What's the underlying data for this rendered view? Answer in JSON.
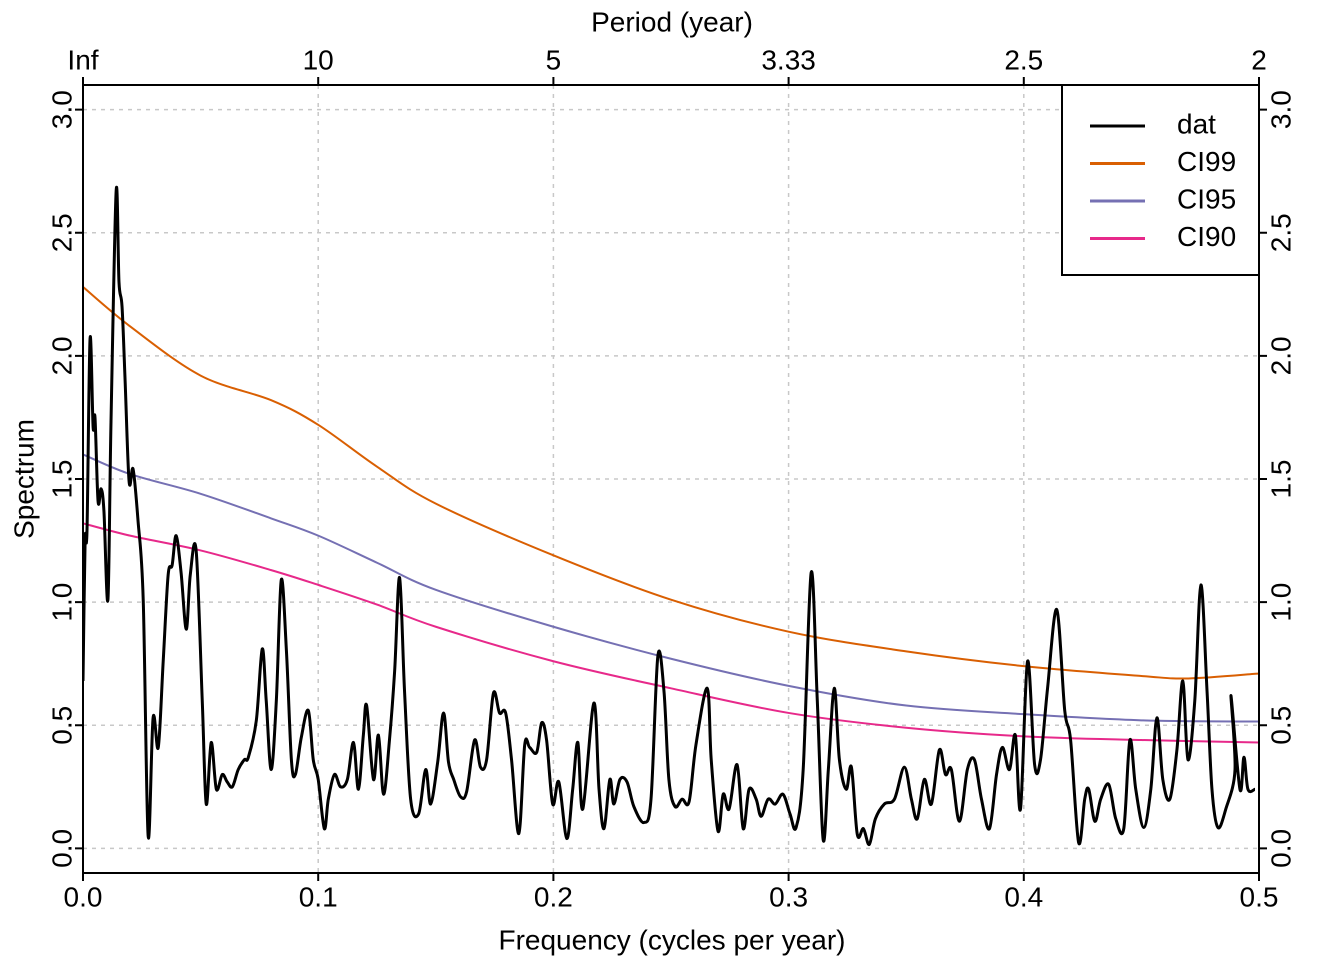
{
  "chart_data": {
    "type": "line",
    "xlabel": "Frequency (cycles per year)",
    "x2label": "Period (year)",
    "ylabel": "Spectrum",
    "xlim": [
      0,
      0.5
    ],
    "xticks": [
      {
        "value": 0,
        "label": "0.0"
      },
      0.1,
      0.2,
      0.3,
      0.4,
      0.5
    ],
    "x2ticks": [
      {
        "value": 0,
        "label": "Inf"
      },
      {
        "value": 0.1,
        "label": "10"
      },
      {
        "value": 0.2,
        "label": "5"
      },
      {
        "value": 0.3,
        "label": "3.33"
      },
      {
        "value": 0.4,
        "label": "2.5"
      },
      {
        "value": 0.5,
        "label": "2"
      }
    ],
    "ylim": [
      -0.1,
      3.1
    ],
    "yticks": [
      {
        "value": 0,
        "label": "0.0"
      },
      0.5,
      {
        "value": 1,
        "label": "1.0"
      },
      1.5,
      {
        "value": 2,
        "label": "2.0"
      },
      2.5,
      {
        "value": 3,
        "label": "3.0"
      }
    ],
    "y2lim": [
      -0.1,
      3.1
    ],
    "y2ticks": [
      {
        "value": 0,
        "label": "0.0"
      },
      0.5,
      {
        "value": 1,
        "label": "1.0"
      },
      1.5,
      {
        "value": 2,
        "label": "2.0"
      },
      2.5,
      {
        "value": 3,
        "label": "3.0"
      }
    ],
    "grid": true,
    "legend": "top-right",
    "series": [
      {
        "name": "dat",
        "color": "#000000",
        "x": [
          0,
          0.0009,
          0.0017,
          0.003,
          0.0043,
          0.0051,
          0.0064,
          0.0077,
          0.0089,
          0.0106,
          0.0119,
          0.0141,
          0.0153,
          0.0166,
          0.0179,
          0.0196,
          0.0213,
          0.0234,
          0.0256,
          0.0277,
          0.0298,
          0.032,
          0.0341,
          0.0362,
          0.0379,
          0.0396,
          0.0417,
          0.0439,
          0.0456,
          0.0481,
          0.0507,
          0.0524,
          0.0545,
          0.0567,
          0.0592,
          0.0613,
          0.0635,
          0.066,
          0.0686,
          0.0703,
          0.0737,
          0.0762,
          0.0779,
          0.08,
          0.0822,
          0.0843,
          0.0865,
          0.0886,
          0.0903,
          0.0928,
          0.0958,
          0.0979,
          0.1,
          0.1026,
          0.1043,
          0.1069,
          0.1095,
          0.1124,
          0.115,
          0.1171,
          0.1192,
          0.1206,
          0.1235,
          0.1256,
          0.1278,
          0.1303,
          0.1325,
          0.1346,
          0.1367,
          0.1393,
          0.1427,
          0.1457,
          0.1478,
          0.1508,
          0.1533,
          0.1554,
          0.1576,
          0.1605,
          0.1631,
          0.1665,
          0.169,
          0.1716,
          0.1745,
          0.1771,
          0.1797,
          0.1822,
          0.1853,
          0.1878,
          0.1899,
          0.1929,
          0.195,
          0.1971,
          0.1997,
          0.2023,
          0.2057,
          0.2082,
          0.2104,
          0.2125,
          0.2172,
          0.2194,
          0.2215,
          0.224,
          0.2257,
          0.2283,
          0.2313,
          0.2342,
          0.2385,
          0.2415,
          0.2444,
          0.247,
          0.2491,
          0.2517,
          0.2547,
          0.2577,
          0.2606,
          0.2654,
          0.2671,
          0.27,
          0.2722,
          0.2747,
          0.2781,
          0.2807,
          0.2832,
          0.2862,
          0.2883,
          0.2913,
          0.2943,
          0.2976,
          0.3006,
          0.3032,
          0.3062,
          0.3096,
          0.3122,
          0.3147,
          0.3169,
          0.3194,
          0.3216,
          0.3245,
          0.3267,
          0.3292,
          0.3318,
          0.3343,
          0.3369,
          0.3407,
          0.345,
          0.3492,
          0.3522,
          0.3547,
          0.3577,
          0.3607,
          0.3641,
          0.3667,
          0.3692,
          0.3726,
          0.376,
          0.379,
          0.382,
          0.3854,
          0.3884,
          0.3909,
          0.3939,
          0.3964,
          0.3986,
          0.4016,
          0.4046,
          0.4071,
          0.4101,
          0.414,
          0.4174,
          0.4199,
          0.4233,
          0.4259,
          0.4276,
          0.4302,
          0.4327,
          0.4361,
          0.4391,
          0.4425,
          0.4451,
          0.4476,
          0.451,
          0.454,
          0.4566,
          0.4591,
          0.4621,
          0.4651,
          0.4676,
          0.4698,
          0.4727,
          0.4753,
          0.4779,
          0.48,
          0.4825,
          0.4859,
          0.4898,
          0.4881,
          0.4919,
          0.4936,
          0.4953,
          0.4983
        ],
        "values": [
          0.68,
          1.25,
          1.29,
          2.07,
          1.71,
          1.75,
          1.41,
          1.46,
          1.37,
          1.01,
          1.73,
          2.67,
          2.3,
          2.2,
          1.9,
          1.49,
          1.54,
          1.33,
          1.01,
          0.05,
          0.53,
          0.41,
          0.76,
          1.11,
          1.15,
          1.27,
          1.12,
          0.89,
          1.11,
          1.21,
          0.6,
          0.18,
          0.43,
          0.24,
          0.3,
          0.27,
          0.25,
          0.32,
          0.36,
          0.37,
          0.52,
          0.81,
          0.6,
          0.32,
          0.6,
          1.09,
          0.8,
          0.36,
          0.3,
          0.45,
          0.56,
          0.36,
          0.28,
          0.08,
          0.2,
          0.3,
          0.25,
          0.28,
          0.43,
          0.24,
          0.46,
          0.58,
          0.28,
          0.46,
          0.22,
          0.44,
          0.72,
          1.1,
          0.64,
          0.2,
          0.14,
          0.32,
          0.18,
          0.35,
          0.55,
          0.35,
          0.28,
          0.21,
          0.23,
          0.44,
          0.33,
          0.36,
          0.63,
          0.55,
          0.55,
          0.36,
          0.06,
          0.42,
          0.41,
          0.39,
          0.51,
          0.44,
          0.18,
          0.27,
          0.04,
          0.24,
          0.43,
          0.16,
          0.59,
          0.24,
          0.08,
          0.28,
          0.18,
          0.28,
          0.27,
          0.17,
          0.105,
          0.2,
          0.78,
          0.64,
          0.28,
          0.17,
          0.2,
          0.19,
          0.42,
          0.65,
          0.36,
          0.07,
          0.22,
          0.16,
          0.34,
          0.08,
          0.24,
          0.2,
          0.13,
          0.2,
          0.18,
          0.22,
          0.14,
          0.085,
          0.32,
          1.12,
          0.6,
          0.035,
          0.32,
          0.65,
          0.36,
          0.24,
          0.33,
          0.057,
          0.08,
          0.016,
          0.12,
          0.18,
          0.2,
          0.33,
          0.2,
          0.12,
          0.28,
          0.18,
          0.4,
          0.3,
          0.32,
          0.11,
          0.32,
          0.36,
          0.2,
          0.08,
          0.3,
          0.41,
          0.32,
          0.46,
          0.16,
          0.76,
          0.34,
          0.36,
          0.65,
          0.97,
          0.56,
          0.44,
          0.024,
          0.2,
          0.24,
          0.11,
          0.2,
          0.26,
          0.12,
          0.08,
          0.44,
          0.24,
          0.085,
          0.24,
          0.53,
          0.28,
          0.2,
          0.4,
          0.68,
          0.36,
          0.6,
          1.07,
          0.64,
          0.24,
          0.085,
          0.16,
          0.32,
          0.62,
          0.24,
          0.37,
          0.24,
          0.24
        ]
      },
      {
        "name": "CI99",
        "color": "#d95f02",
        "x": [
          0,
          0.02,
          0.05,
          0.08,
          0.1,
          0.125,
          0.15,
          0.2,
          0.25,
          0.3,
          0.35,
          0.4,
          0.45,
          0.47,
          0.5
        ],
        "values": [
          2.28,
          2.12,
          1.92,
          1.82,
          1.72,
          1.55,
          1.4,
          1.19,
          1.01,
          0.88,
          0.8,
          0.74,
          0.7,
          0.69,
          0.71
        ]
      },
      {
        "name": "CI95",
        "color": "#7570b3",
        "x": [
          0,
          0.02,
          0.05,
          0.08,
          0.1,
          0.125,
          0.15,
          0.2,
          0.25,
          0.3,
          0.35,
          0.4,
          0.45,
          0.5
        ],
        "values": [
          1.6,
          1.52,
          1.44,
          1.34,
          1.27,
          1.16,
          1.05,
          0.9,
          0.77,
          0.66,
          0.58,
          0.545,
          0.52,
          0.515
        ]
      },
      {
        "name": "CI90",
        "color": "#e7298a",
        "x": [
          0,
          0.02,
          0.05,
          0.08,
          0.1,
          0.125,
          0.15,
          0.2,
          0.25,
          0.3,
          0.35,
          0.4,
          0.45,
          0.5
        ],
        "values": [
          1.32,
          1.27,
          1.21,
          1.13,
          1.07,
          0.99,
          0.9,
          0.76,
          0.65,
          0.55,
          0.49,
          0.455,
          0.44,
          0.43
        ]
      }
    ]
  }
}
